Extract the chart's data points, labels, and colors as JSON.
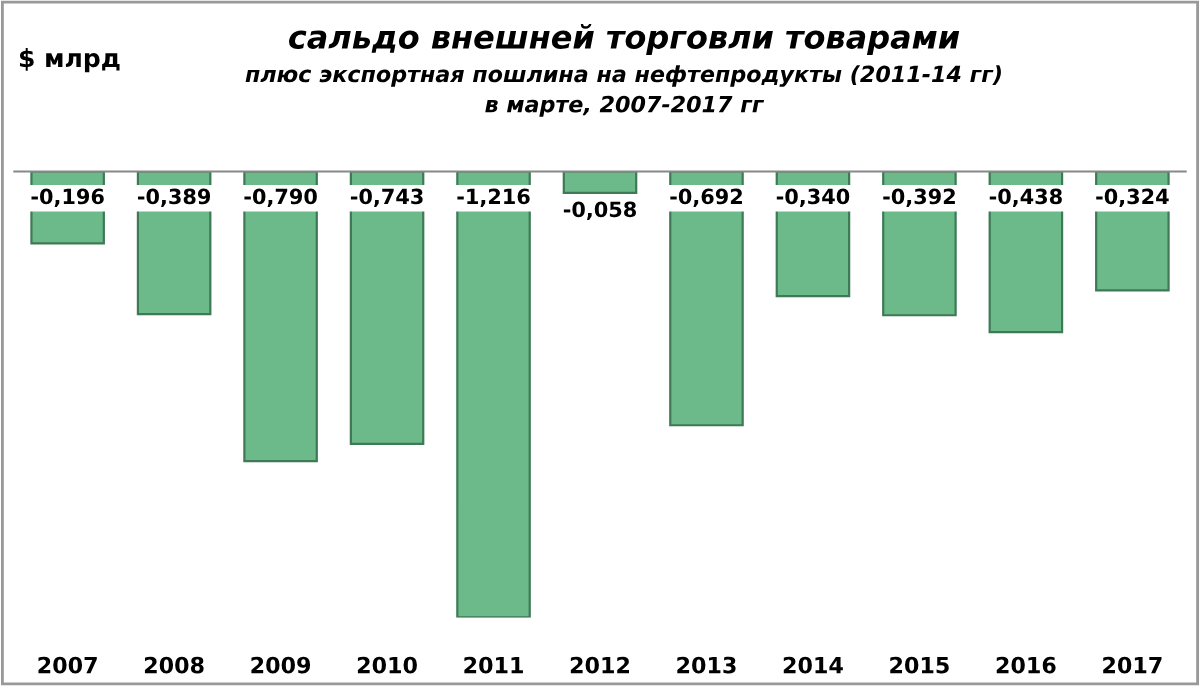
{
  "chart_data": {
    "type": "bar",
    "title": "сальдо внешней торговли товарами",
    "subtitle": "плюс экспортная пошлина на нефтепродукты (2011-14 гг)\nв марте, 2007-2017 гг",
    "ylabel": "$ млрд",
    "categories": [
      "2007",
      "2008",
      "2009",
      "2010",
      "2011",
      "2012",
      "2013",
      "2014",
      "2015",
      "2016",
      "2017"
    ],
    "values": [
      -0.196,
      -0.389,
      -0.79,
      -0.743,
      -1.216,
      -0.058,
      -0.692,
      -0.34,
      -0.392,
      -0.438,
      -0.324
    ],
    "value_labels": [
      "-0,196",
      "-0,389",
      "-0,790",
      "-0,743",
      "-1,216",
      "-0,058",
      "-0,692",
      "-0,340",
      "-0,392",
      "-0,438",
      "-0,324"
    ],
    "color": "#6cba8a"
  }
}
